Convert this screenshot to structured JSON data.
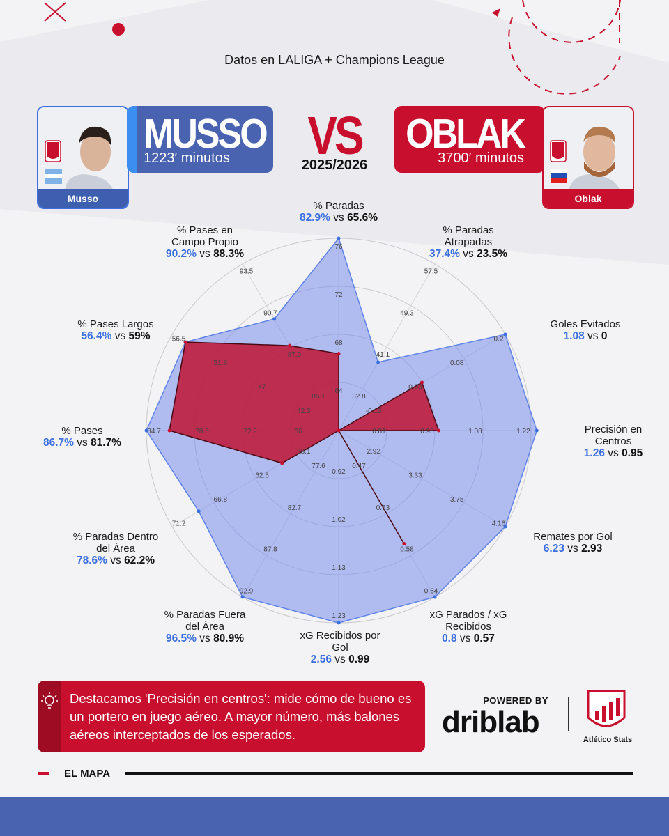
{
  "subtitle": "Datos en LALIGA + Champions League",
  "season": "2025/2026",
  "vs_label": "VS",
  "player_a": {
    "name": "MUSSO",
    "minutes": "1223′ minutos",
    "tag": "Musso",
    "color": "#3b6fe0"
  },
  "player_b": {
    "name": "OBLAK",
    "minutes": "3700′ minutos",
    "tag": "Oblak",
    "color": "#c8102e"
  },
  "labels": [
    {
      "l1": "% Paradas",
      "l2": "",
      "a": "82.9%",
      "b": "65.6%"
    },
    {
      "l1": "% Paradas",
      "l2": "Atrapadas",
      "a": "37.4%",
      "b": "23.5%"
    },
    {
      "l1": "Goles Evitados",
      "l2": "",
      "a": "1.08",
      "b": "0"
    },
    {
      "l1": "Precisión en",
      "l2": "Centros",
      "a": "1.26",
      "b": "0.95"
    },
    {
      "l1": "Remates por Gol",
      "l2": "",
      "a": "6.23",
      "b": "2.93"
    },
    {
      "l1": "xG Parados / xG",
      "l2": "Recibidos",
      "a": "0.8",
      "b": "0.57"
    },
    {
      "l1": "xG Recibidos por",
      "l2": "Gol",
      "a": "2.56",
      "b": "0.99"
    },
    {
      "l1": "% Paradas Fuera",
      "l2": "del Área",
      "a": "96.5%",
      "b": "80.9%"
    },
    {
      "l1": "% Paradas Dentro",
      "l2": "del Área",
      "a": "78.6%",
      "b": "62.2%"
    },
    {
      "l1": "% Pases",
      "l2": "",
      "a": "86.7%",
      "b": "81.7%"
    },
    {
      "l1": "% Pases Largos",
      "l2": "",
      "a": "56.4%",
      "b": "59%"
    },
    {
      "l1": "% Pases en",
      "l2": "Campo Propio",
      "a": "90.2%",
      "b": "88.3%"
    }
  ],
  "vs_word": "vs",
  "chart_data": {
    "type": "radar",
    "axes": [
      "% Paradas",
      "% Paradas Atrapadas",
      "Goles Evitados",
      "Precisión en Centros",
      "Remates por Gol",
      "xG Parados / xG Recibidos",
      "xG Recibidos por Gol",
      "% Paradas Fuera del Área",
      "% Paradas Dentro del Área",
      "% Pases",
      "% Pases Largos",
      "% Pases en Campo Propio"
    ],
    "series": [
      {
        "name": "MUSSO",
        "color": "#3b6fe0",
        "values": [
          82.9,
          37.4,
          1.08,
          1.26,
          6.23,
          0.8,
          2.56,
          96.5,
          78.6,
          86.7,
          56.4,
          90.2
        ],
        "ratio": [
          1.0,
          0.41,
          1.0,
          1.03,
          1.0,
          1.0,
          1.0,
          1.0,
          0.84,
          1.0,
          0.92,
          0.67
        ]
      },
      {
        "name": "OBLAK",
        "color": "#c8102e",
        "values": [
          65.6,
          23.5,
          0,
          0.95,
          2.93,
          0.57,
          0.99,
          80.9,
          62.2,
          81.7,
          59,
          88.3
        ],
        "ratio": [
          0.4,
          0.0,
          0.5,
          0.52,
          0.0,
          0.68,
          0.0,
          0.0,
          0.34,
          0.88,
          0.92,
          0.51
        ]
      }
    ],
    "ticks": [
      [
        "64",
        "68",
        "72",
        "76"
      ],
      [
        "32.8",
        "41.1",
        "49.3",
        "57.5"
      ],
      [
        "-0.15",
        "0.03",
        "0.08",
        "0.2"
      ],
      [
        "0.81",
        "0.95",
        "1.08",
        "1.22"
      ],
      [
        "2.92",
        "3.33",
        "3.75",
        "4.16"
      ],
      [
        "0.47",
        "0.53",
        "0.58",
        "0.64"
      ],
      [
        "0.92",
        "1.02",
        "1.13",
        "1.23"
      ],
      [
        "77.6",
        "82.7",
        "87.8",
        "92.9"
      ],
      [
        "58.1",
        "62.5",
        "66.8",
        "71.2"
      ],
      [
        "66",
        "72.2",
        "78.5",
        "84.7"
      ],
      [
        "42.3",
        "47",
        "51.8",
        "56.5"
      ],
      [
        "85.1",
        "87.9",
        "90.7",
        "93.5"
      ]
    ]
  },
  "note": "Destacamos 'Precisión en centros': mide cómo de bueno es un portero en juego aéreo. A mayor número, más balones aéreos interceptados de los esperados.",
  "powered_by": "POWERED BY",
  "brand": "driblab",
  "stats_label": "Atlético Stats",
  "map_label": "EL MAPA"
}
